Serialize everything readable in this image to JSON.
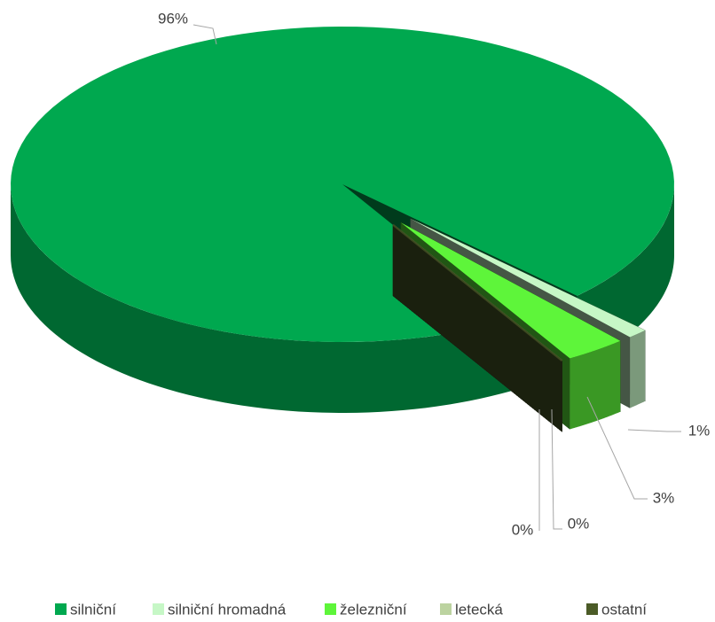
{
  "chart_data": {
    "type": "pie",
    "categories": [
      "silniční",
      "silniční hromadná",
      "železniční",
      "letecká",
      "ostatní"
    ],
    "values": [
      96,
      1,
      3,
      0,
      0
    ],
    "value_labels": [
      "96%",
      "1%",
      "3%",
      "0%",
      "0%"
    ],
    "colors": [
      "#00a84f",
      "#c6f7c6",
      "#5ef53a",
      "#bcd3a0",
      "#4b5b27"
    ],
    "legend": "bottom",
    "start_angle": 59.4,
    "explode": [
      0,
      0.3,
      0.3,
      0.3,
      0.3
    ]
  }
}
